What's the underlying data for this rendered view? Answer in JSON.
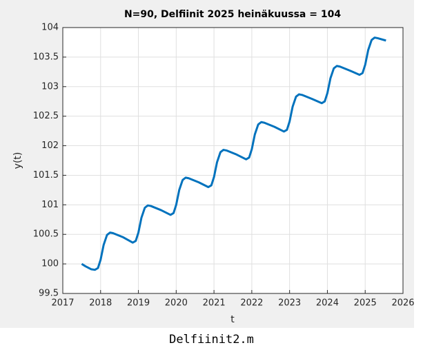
{
  "chart_data": {
    "type": "line",
    "title": "N=90, Delfiinit 2025 heinäkuussa = 104",
    "xlabel": "t",
    "ylabel": "y(t)",
    "x": [
      2017.5,
      2017.6,
      2017.75,
      2017.85,
      2017.93,
      2018,
      2018.08,
      2018.17,
      2018.25,
      2018.33,
      2018.6,
      2018.85,
      2018.93,
      2019,
      2019.08,
      2019.17,
      2019.25,
      2019.33,
      2019.6,
      2019.85,
      2019.93,
      2020,
      2020.08,
      2020.17,
      2020.25,
      2020.33,
      2020.6,
      2020.85,
      2020.93,
      2021,
      2021.08,
      2021.17,
      2021.25,
      2021.33,
      2021.6,
      2021.85,
      2021.93,
      2022,
      2022.08,
      2022.17,
      2022.25,
      2022.33,
      2022.6,
      2022.85,
      2022.93,
      2023,
      2023.08,
      2023.17,
      2023.25,
      2023.33,
      2023.6,
      2023.85,
      2023.93,
      2024,
      2024.08,
      2024.17,
      2024.25,
      2024.33,
      2024.6,
      2024.85,
      2024.93,
      2025,
      2025.08,
      2025.17,
      2025.25,
      2025.33,
      2025.55
    ],
    "series": [
      {
        "name": "y(t)",
        "color": "#0072bd",
        "values": [
          100.0,
          99.96,
          99.91,
          99.9,
          99.93,
          100.07,
          100.32,
          100.49,
          100.53,
          100.52,
          100.45,
          100.36,
          100.39,
          100.53,
          100.78,
          100.95,
          100.99,
          100.98,
          100.91,
          100.83,
          100.86,
          101.0,
          101.25,
          101.42,
          101.46,
          101.45,
          101.38,
          101.3,
          101.33,
          101.47,
          101.72,
          101.89,
          101.93,
          101.92,
          101.85,
          101.77,
          101.8,
          101.94,
          102.19,
          102.36,
          102.4,
          102.39,
          102.32,
          102.24,
          102.27,
          102.41,
          102.66,
          102.83,
          102.87,
          102.86,
          102.79,
          102.72,
          102.75,
          102.89,
          103.14,
          103.31,
          103.35,
          103.34,
          103.27,
          103.2,
          103.23,
          103.37,
          103.62,
          103.79,
          103.83,
          103.82,
          103.78
        ]
      }
    ],
    "xlim": [
      2017,
      2026
    ],
    "xticks": [
      2017,
      2018,
      2019,
      2020,
      2021,
      2022,
      2023,
      2024,
      2025,
      2026
    ],
    "ylim": [
      99.5,
      104
    ],
    "yticks": [
      99.5,
      100,
      100.5,
      101,
      101.5,
      102,
      102.5,
      103,
      103.5,
      104
    ],
    "grid": true
  },
  "caption": "Delfiinit2.m"
}
